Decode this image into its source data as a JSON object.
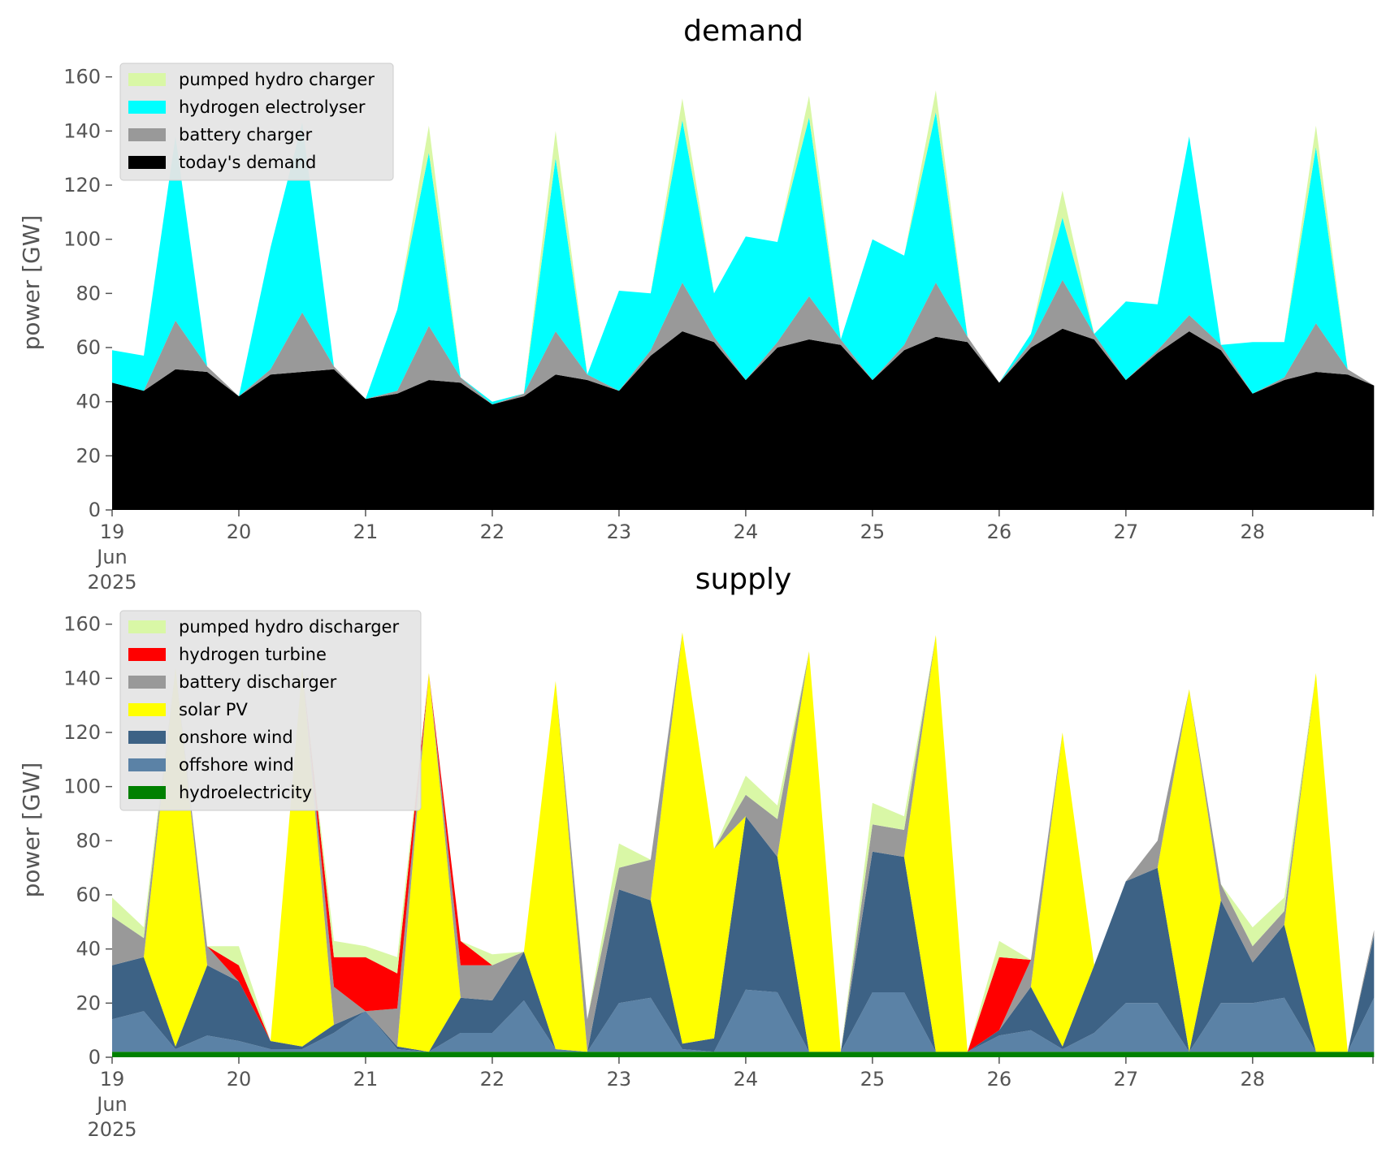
{
  "chart_data": [
    {
      "type": "area",
      "stacked": true,
      "title": "demand",
      "ylabel": "power [GW]",
      "ylim": [
        0,
        165
      ],
      "yticks": [
        0,
        20,
        40,
        60,
        80,
        100,
        120,
        140,
        160
      ],
      "xlim": [
        19,
        28.95
      ],
      "xticks": [
        {
          "value": 19,
          "lines": [
            "19",
            "Jun",
            "2025"
          ]
        },
        {
          "value": 20,
          "lines": [
            "20"
          ]
        },
        {
          "value": 21,
          "lines": [
            "21"
          ]
        },
        {
          "value": 22,
          "lines": [
            "22"
          ]
        },
        {
          "value": 23,
          "lines": [
            "23"
          ]
        },
        {
          "value": 24,
          "lines": [
            "24"
          ]
        },
        {
          "value": 25,
          "lines": [
            "25"
          ]
        },
        {
          "value": 26,
          "lines": [
            "26"
          ]
        },
        {
          "value": 27,
          "lines": [
            "27"
          ]
        },
        {
          "value": 28,
          "lines": [
            "28"
          ]
        }
      ],
      "grid": false,
      "legend_position": "top-left",
      "x": [
        "2025-06-19",
        "2025-06-19 06:00",
        "2025-06-19 12:00",
        "2025-06-19 18:00",
        "2025-06-20",
        "2025-06-20 06:00",
        "2025-06-20 12:00",
        "2025-06-20 18:00",
        "2025-06-21",
        "2025-06-21 06:00",
        "2025-06-21 12:00",
        "2025-06-21 18:00",
        "2025-06-22",
        "2025-06-22 06:00",
        "2025-06-22 12:00",
        "2025-06-22 18:00",
        "2025-06-23",
        "2025-06-23 06:00",
        "2025-06-23 12:00",
        "2025-06-23 18:00",
        "2025-06-24",
        "2025-06-24 06:00",
        "2025-06-24 12:00",
        "2025-06-24 18:00",
        "2025-06-25",
        "2025-06-25 06:00",
        "2025-06-25 12:00",
        "2025-06-25 18:00",
        "2025-06-26",
        "2025-06-26 06:00",
        "2025-06-26 12:00",
        "2025-06-26 18:00",
        "2025-06-27",
        "2025-06-27 06:00",
        "2025-06-27 12:00",
        "2025-06-27 18:00",
        "2025-06-28",
        "2025-06-28 06:00",
        "2025-06-28 12:00",
        "2025-06-28 18:00",
        "2025-06-28 23:00"
      ],
      "series": [
        {
          "name": "today's demand",
          "color": "#000000",
          "values": [
            47,
            44,
            52,
            51,
            42,
            50,
            51,
            52,
            41,
            43,
            48,
            47,
            39,
            42,
            50,
            48,
            44,
            57,
            66,
            62,
            48,
            60,
            63,
            61,
            48,
            59,
            64,
            62,
            47,
            60,
            67,
            63,
            48,
            58,
            66,
            59,
            43,
            48,
            51,
            50,
            46
          ]
        },
        {
          "name": "battery charger",
          "color": "#999999",
          "values": [
            0,
            0,
            18,
            2,
            0,
            2,
            22,
            1,
            0,
            1,
            20,
            2,
            0,
            1,
            16,
            2,
            0,
            2,
            18,
            2,
            0,
            2,
            16,
            2,
            0,
            2,
            20,
            2,
            0,
            2,
            18,
            2,
            0,
            1,
            6,
            2,
            0,
            1,
            18,
            2,
            0
          ]
        },
        {
          "name": "hydrogen electrolyser",
          "color": "#00ffff",
          "values": [
            12,
            13,
            68,
            0,
            0,
            45,
            70,
            0,
            0,
            30,
            64,
            0,
            1,
            0,
            64,
            0,
            37,
            21,
            60,
            16,
            53,
            37,
            66,
            0,
            52,
            33,
            63,
            0,
            0,
            3,
            23,
            0,
            29,
            17,
            66,
            0,
            19,
            13,
            65,
            0,
            0
          ]
        },
        {
          "name": "pumped hydro charger",
          "color": "#d9f7a6",
          "values": [
            0,
            0,
            0,
            0,
            0,
            0,
            0,
            0,
            0,
            0,
            10,
            0,
            0,
            0,
            10,
            0,
            0,
            0,
            8,
            0,
            0,
            0,
            8,
            0,
            0,
            0,
            8,
            0,
            0,
            0,
            10,
            0,
            0,
            0,
            0,
            0,
            0,
            0,
            8,
            0,
            0
          ]
        }
      ]
    },
    {
      "type": "area",
      "stacked": true,
      "title": "supply",
      "ylabel": "power [GW]",
      "ylim": [
        0,
        165
      ],
      "yticks": [
        0,
        20,
        40,
        60,
        80,
        100,
        120,
        140,
        160
      ],
      "xlim": [
        19,
        28.95
      ],
      "xticks": [
        {
          "value": 19,
          "lines": [
            "19",
            "Jun",
            "2025"
          ]
        },
        {
          "value": 20,
          "lines": [
            "20"
          ]
        },
        {
          "value": 21,
          "lines": [
            "21"
          ]
        },
        {
          "value": 22,
          "lines": [
            "22"
          ]
        },
        {
          "value": 23,
          "lines": [
            "23"
          ]
        },
        {
          "value": 24,
          "lines": [
            "24"
          ]
        },
        {
          "value": 25,
          "lines": [
            "25"
          ]
        },
        {
          "value": 26,
          "lines": [
            "26"
          ]
        },
        {
          "value": 27,
          "lines": [
            "27"
          ]
        },
        {
          "value": 28,
          "lines": [
            "28"
          ]
        }
      ],
      "grid": false,
      "legend_position": "top-left",
      "x": [
        "2025-06-19",
        "2025-06-19 06:00",
        "2025-06-19 12:00",
        "2025-06-19 18:00",
        "2025-06-20",
        "2025-06-20 06:00",
        "2025-06-20 12:00",
        "2025-06-20 18:00",
        "2025-06-21",
        "2025-06-21 06:00",
        "2025-06-21 12:00",
        "2025-06-21 18:00",
        "2025-06-22",
        "2025-06-22 06:00",
        "2025-06-22 12:00",
        "2025-06-22 18:00",
        "2025-06-23",
        "2025-06-23 06:00",
        "2025-06-23 12:00",
        "2025-06-23 18:00",
        "2025-06-24",
        "2025-06-24 06:00",
        "2025-06-24 12:00",
        "2025-06-24 18:00",
        "2025-06-25",
        "2025-06-25 06:00",
        "2025-06-25 12:00",
        "2025-06-25 18:00",
        "2025-06-26",
        "2025-06-26 06:00",
        "2025-06-26 12:00",
        "2025-06-26 18:00",
        "2025-06-27",
        "2025-06-27 06:00",
        "2025-06-27 12:00",
        "2025-06-27 18:00",
        "2025-06-28",
        "2025-06-28 06:00",
        "2025-06-28 12:00",
        "2025-06-28 18:00",
        "2025-06-28 23:00"
      ],
      "series": [
        {
          "name": "hydroelectricity",
          "color": "#008000",
          "values": [
            2,
            2,
            2,
            2,
            2,
            2,
            2,
            2,
            2,
            2,
            2,
            2,
            2,
            2,
            2,
            2,
            2,
            2,
            2,
            2,
            2,
            2,
            2,
            2,
            2,
            2,
            2,
            2,
            2,
            2,
            2,
            2,
            2,
            2,
            2,
            2,
            2,
            2,
            2,
            2,
            2
          ]
        },
        {
          "name": "offshore wind",
          "color": "#5b82a6",
          "values": [
            12,
            15,
            1,
            6,
            4,
            1,
            1,
            7,
            15,
            1,
            0,
            7,
            7,
            19,
            1,
            0,
            18,
            20,
            1,
            0,
            23,
            22,
            0,
            0,
            22,
            22,
            0,
            0,
            6,
            8,
            1,
            7,
            18,
            18,
            0,
            18,
            18,
            20,
            0,
            0,
            20
          ]
        },
        {
          "name": "onshore wind",
          "color": "#3d6285",
          "values": [
            20,
            20,
            1,
            26,
            22,
            3,
            1,
            3,
            0,
            1,
            0,
            13,
            12,
            18,
            0,
            0,
            42,
            36,
            2,
            5,
            64,
            50,
            0,
            0,
            52,
            50,
            0,
            0,
            2,
            16,
            1,
            25,
            45,
            50,
            0,
            38,
            15,
            27,
            0,
            0,
            23
          ]
        },
        {
          "name": "solar PV",
          "color": "#ffff00",
          "values": [
            0,
            0,
            140,
            0,
            0,
            0,
            140,
            0,
            0,
            0,
            140,
            0,
            0,
            0,
            136,
            0,
            0,
            0,
            152,
            70,
            0,
            0,
            148,
            0,
            0,
            0,
            154,
            0,
            0,
            0,
            116,
            0,
            0,
            0,
            134,
            0,
            0,
            0,
            140,
            0,
            0
          ]
        },
        {
          "name": "battery discharger",
          "color": "#999999",
          "values": [
            18,
            7,
            0,
            7,
            0,
            0,
            0,
            14,
            0,
            14,
            0,
            12,
            13,
            0,
            0,
            12,
            8,
            15,
            0,
            0,
            8,
            14,
            0,
            0,
            10,
            10,
            0,
            0,
            0,
            10,
            0,
            0,
            0,
            10,
            0,
            6,
            6,
            5,
            0,
            0,
            2
          ]
        },
        {
          "name": "hydrogen turbine",
          "color": "#ff0000",
          "values": [
            0,
            0,
            0,
            0,
            6,
            0,
            0,
            11,
            20,
            13,
            0,
            9,
            0,
            0,
            0,
            0,
            0,
            0,
            0,
            0,
            0,
            0,
            0,
            0,
            0,
            0,
            0,
            0,
            27,
            0,
            0,
            0,
            0,
            0,
            0,
            0,
            0,
            0,
            0,
            0,
            0
          ]
        },
        {
          "name": "pumped hydro discharger",
          "color": "#d9f7a6",
          "values": [
            7,
            4,
            0,
            0,
            7,
            0,
            0,
            6,
            4,
            6,
            0,
            0,
            4,
            0,
            0,
            0,
            9,
            0,
            0,
            0,
            7,
            5,
            0,
            0,
            8,
            5,
            0,
            0,
            6,
            0,
            0,
            0,
            0,
            0,
            0,
            0,
            7,
            5,
            0,
            0,
            0
          ]
        }
      ]
    }
  ]
}
